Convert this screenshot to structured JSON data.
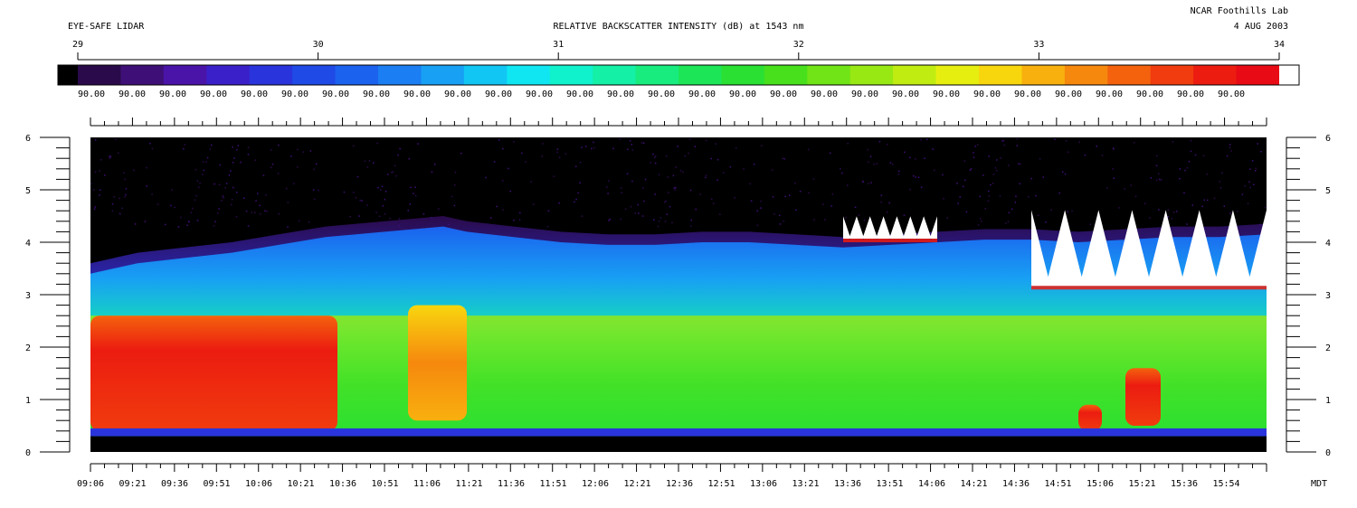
{
  "header": {
    "left_title": "EYE-SAFE LIDAR",
    "center_title": "RELATIVE BACKSCATTER INTENSITY (dB) at 1543 nm",
    "org": "NCAR Foothills Lab",
    "date": "4 AUG 2003"
  },
  "colorbar": {
    "ticks": [
      "29",
      "30",
      "31",
      "32",
      "33",
      "34"
    ],
    "range": [
      29,
      34
    ],
    "segment_count": 29,
    "segment_label": "90.00",
    "colors": [
      "#000000",
      "#2a0a4a",
      "#3f0f78",
      "#4a14a8",
      "#3a20c8",
      "#2a34dc",
      "#1f4ae6",
      "#1b62ee",
      "#1b7ef2",
      "#18a0f4",
      "#12c6f4",
      "#0fe6f2",
      "#10f2cc",
      "#14f0a6",
      "#18ec7e",
      "#1ce658",
      "#2ae032",
      "#48e01c",
      "#70e416",
      "#98e814",
      "#c0ec12",
      "#e6ee10",
      "#f8d60e",
      "#f8b00e",
      "#f6880e",
      "#f4620e",
      "#f03c0e",
      "#ec1c10",
      "#e80a14",
      "#ffffff"
    ]
  },
  "chart_data": {
    "type": "heatmap",
    "title": "RELATIVE BACKSCATTER INTENSITY (dB) at 1543 nm",
    "ylim": [
      0,
      6
    ],
    "y_ticks": [
      "0",
      "1",
      "2",
      "3",
      "4",
      "5",
      "6"
    ],
    "x_time_range": [
      "09:06",
      "16:06"
    ],
    "x_ticks": [
      "09:06",
      "09:21",
      "09:36",
      "09:51",
      "10:06",
      "10:21",
      "10:36",
      "10:51",
      "11:06",
      "11:21",
      "11:36",
      "11:51",
      "12:06",
      "12:21",
      "12:36",
      "12:51",
      "13:06",
      "13:21",
      "13:36",
      "13:51",
      "14:06",
      "14:21",
      "14:36",
      "14:51",
      "15:06",
      "15:21",
      "15:36",
      "15:54"
    ],
    "x_unit_label": "MDT",
    "color_scale_range": [
      29,
      34
    ],
    "aerosol_top_km": [
      [
        0.0,
        3.55
      ],
      [
        0.04,
        3.75
      ],
      [
        0.08,
        3.85
      ],
      [
        0.12,
        3.95
      ],
      [
        0.16,
        4.1
      ],
      [
        0.2,
        4.25
      ],
      [
        0.25,
        4.35
      ],
      [
        0.3,
        4.45
      ],
      [
        0.32,
        4.35
      ],
      [
        0.36,
        4.25
      ],
      [
        0.4,
        4.15
      ],
      [
        0.44,
        4.1
      ],
      [
        0.48,
        4.1
      ],
      [
        0.52,
        4.15
      ],
      [
        0.56,
        4.15
      ],
      [
        0.6,
        4.1
      ],
      [
        0.64,
        4.05
      ],
      [
        0.68,
        4.1
      ],
      [
        0.72,
        4.15
      ],
      [
        0.76,
        4.2
      ],
      [
        0.8,
        4.2
      ],
      [
        0.84,
        4.15
      ],
      [
        0.88,
        4.2
      ],
      [
        0.92,
        4.25
      ],
      [
        0.96,
        4.25
      ],
      [
        1.0,
        4.3
      ]
    ],
    "clouds": [
      {
        "t": [
          0.0,
          0.21
        ],
        "z": [
          0.4,
          2.6
        ],
        "level": "red"
      },
      {
        "t": [
          0.27,
          0.32
        ],
        "z": [
          0.6,
          2.8
        ],
        "level": "orange"
      },
      {
        "t": [
          0.84,
          0.86
        ],
        "z": [
          0.4,
          0.9
        ],
        "level": "red"
      },
      {
        "t": [
          0.88,
          0.91
        ],
        "z": [
          0.5,
          1.6
        ],
        "level": "red"
      },
      {
        "t": [
          0.8,
          1.0
        ],
        "z": [
          3.1,
          4.8
        ],
        "level": "white"
      },
      {
        "t": [
          0.64,
          0.72
        ],
        "z": [
          4.0,
          4.5
        ],
        "level": "white"
      }
    ]
  },
  "footer": {
    "unit": "MDT"
  }
}
